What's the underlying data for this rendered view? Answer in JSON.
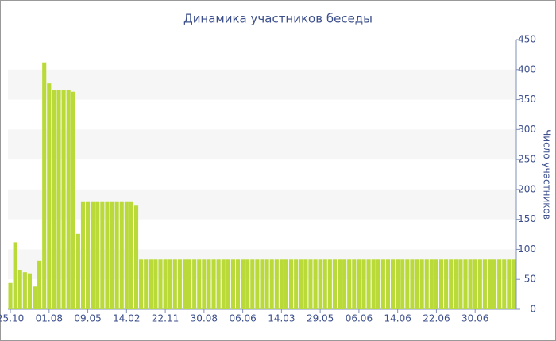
{
  "chart_data": {
    "type": "bar",
    "title": "Динамика участников беседы",
    "y_label": "Число участников",
    "categories": [
      "25.10",
      null,
      null,
      null,
      null,
      null,
      null,
      null,
      "01.08",
      null,
      null,
      null,
      null,
      null,
      null,
      null,
      "09.05",
      null,
      null,
      null,
      null,
      null,
      null,
      null,
      "14.02",
      null,
      null,
      null,
      null,
      null,
      null,
      null,
      "22.11",
      null,
      null,
      null,
      null,
      null,
      null,
      null,
      "30.08",
      null,
      null,
      null,
      null,
      null,
      null,
      null,
      "06.06",
      null,
      null,
      null,
      null,
      null,
      null,
      null,
      "14.03",
      null,
      null,
      null,
      null,
      null,
      null,
      null,
      "29.05",
      null,
      null,
      null,
      null,
      null,
      null,
      null,
      "06.06",
      null,
      null,
      null,
      null,
      null,
      null,
      null,
      "14.06",
      null,
      null,
      null,
      null,
      null,
      null,
      null,
      "22.06",
      null,
      null,
      null,
      null,
      null,
      null,
      null,
      "30.06",
      null,
      null,
      null,
      null,
      null,
      null,
      null,
      null
    ],
    "values": [
      44,
      112,
      66,
      62,
      60,
      38,
      81,
      412,
      377,
      366,
      366,
      366,
      366,
      363,
      126,
      179,
      179,
      179,
      179,
      179,
      179,
      179,
      179,
      179,
      179,
      179,
      173,
      83,
      83,
      83,
      83,
      83,
      83,
      83,
      83,
      83,
      83,
      83,
      83,
      83,
      83,
      83,
      83,
      83,
      83,
      83,
      83,
      83,
      83,
      83,
      83,
      83,
      83,
      83,
      83,
      83,
      83,
      83,
      83,
      83,
      83,
      83,
      83,
      83,
      83,
      83,
      83,
      83,
      83,
      83,
      83,
      83,
      83,
      83,
      83,
      83,
      83,
      83,
      83,
      83,
      83,
      83,
      83,
      83,
      83,
      83,
      83,
      83,
      83,
      83,
      83,
      83,
      83,
      83,
      83,
      83,
      83,
      83,
      83,
      83,
      83,
      83,
      83,
      83,
      83
    ],
    "color": "#bada3a",
    "ylim": [
      0,
      450
    ],
    "yticks": [
      0,
      50,
      100,
      150,
      200,
      250,
      300,
      350,
      400,
      450
    ],
    "y_axis_side": "right",
    "grid": "bands"
  }
}
